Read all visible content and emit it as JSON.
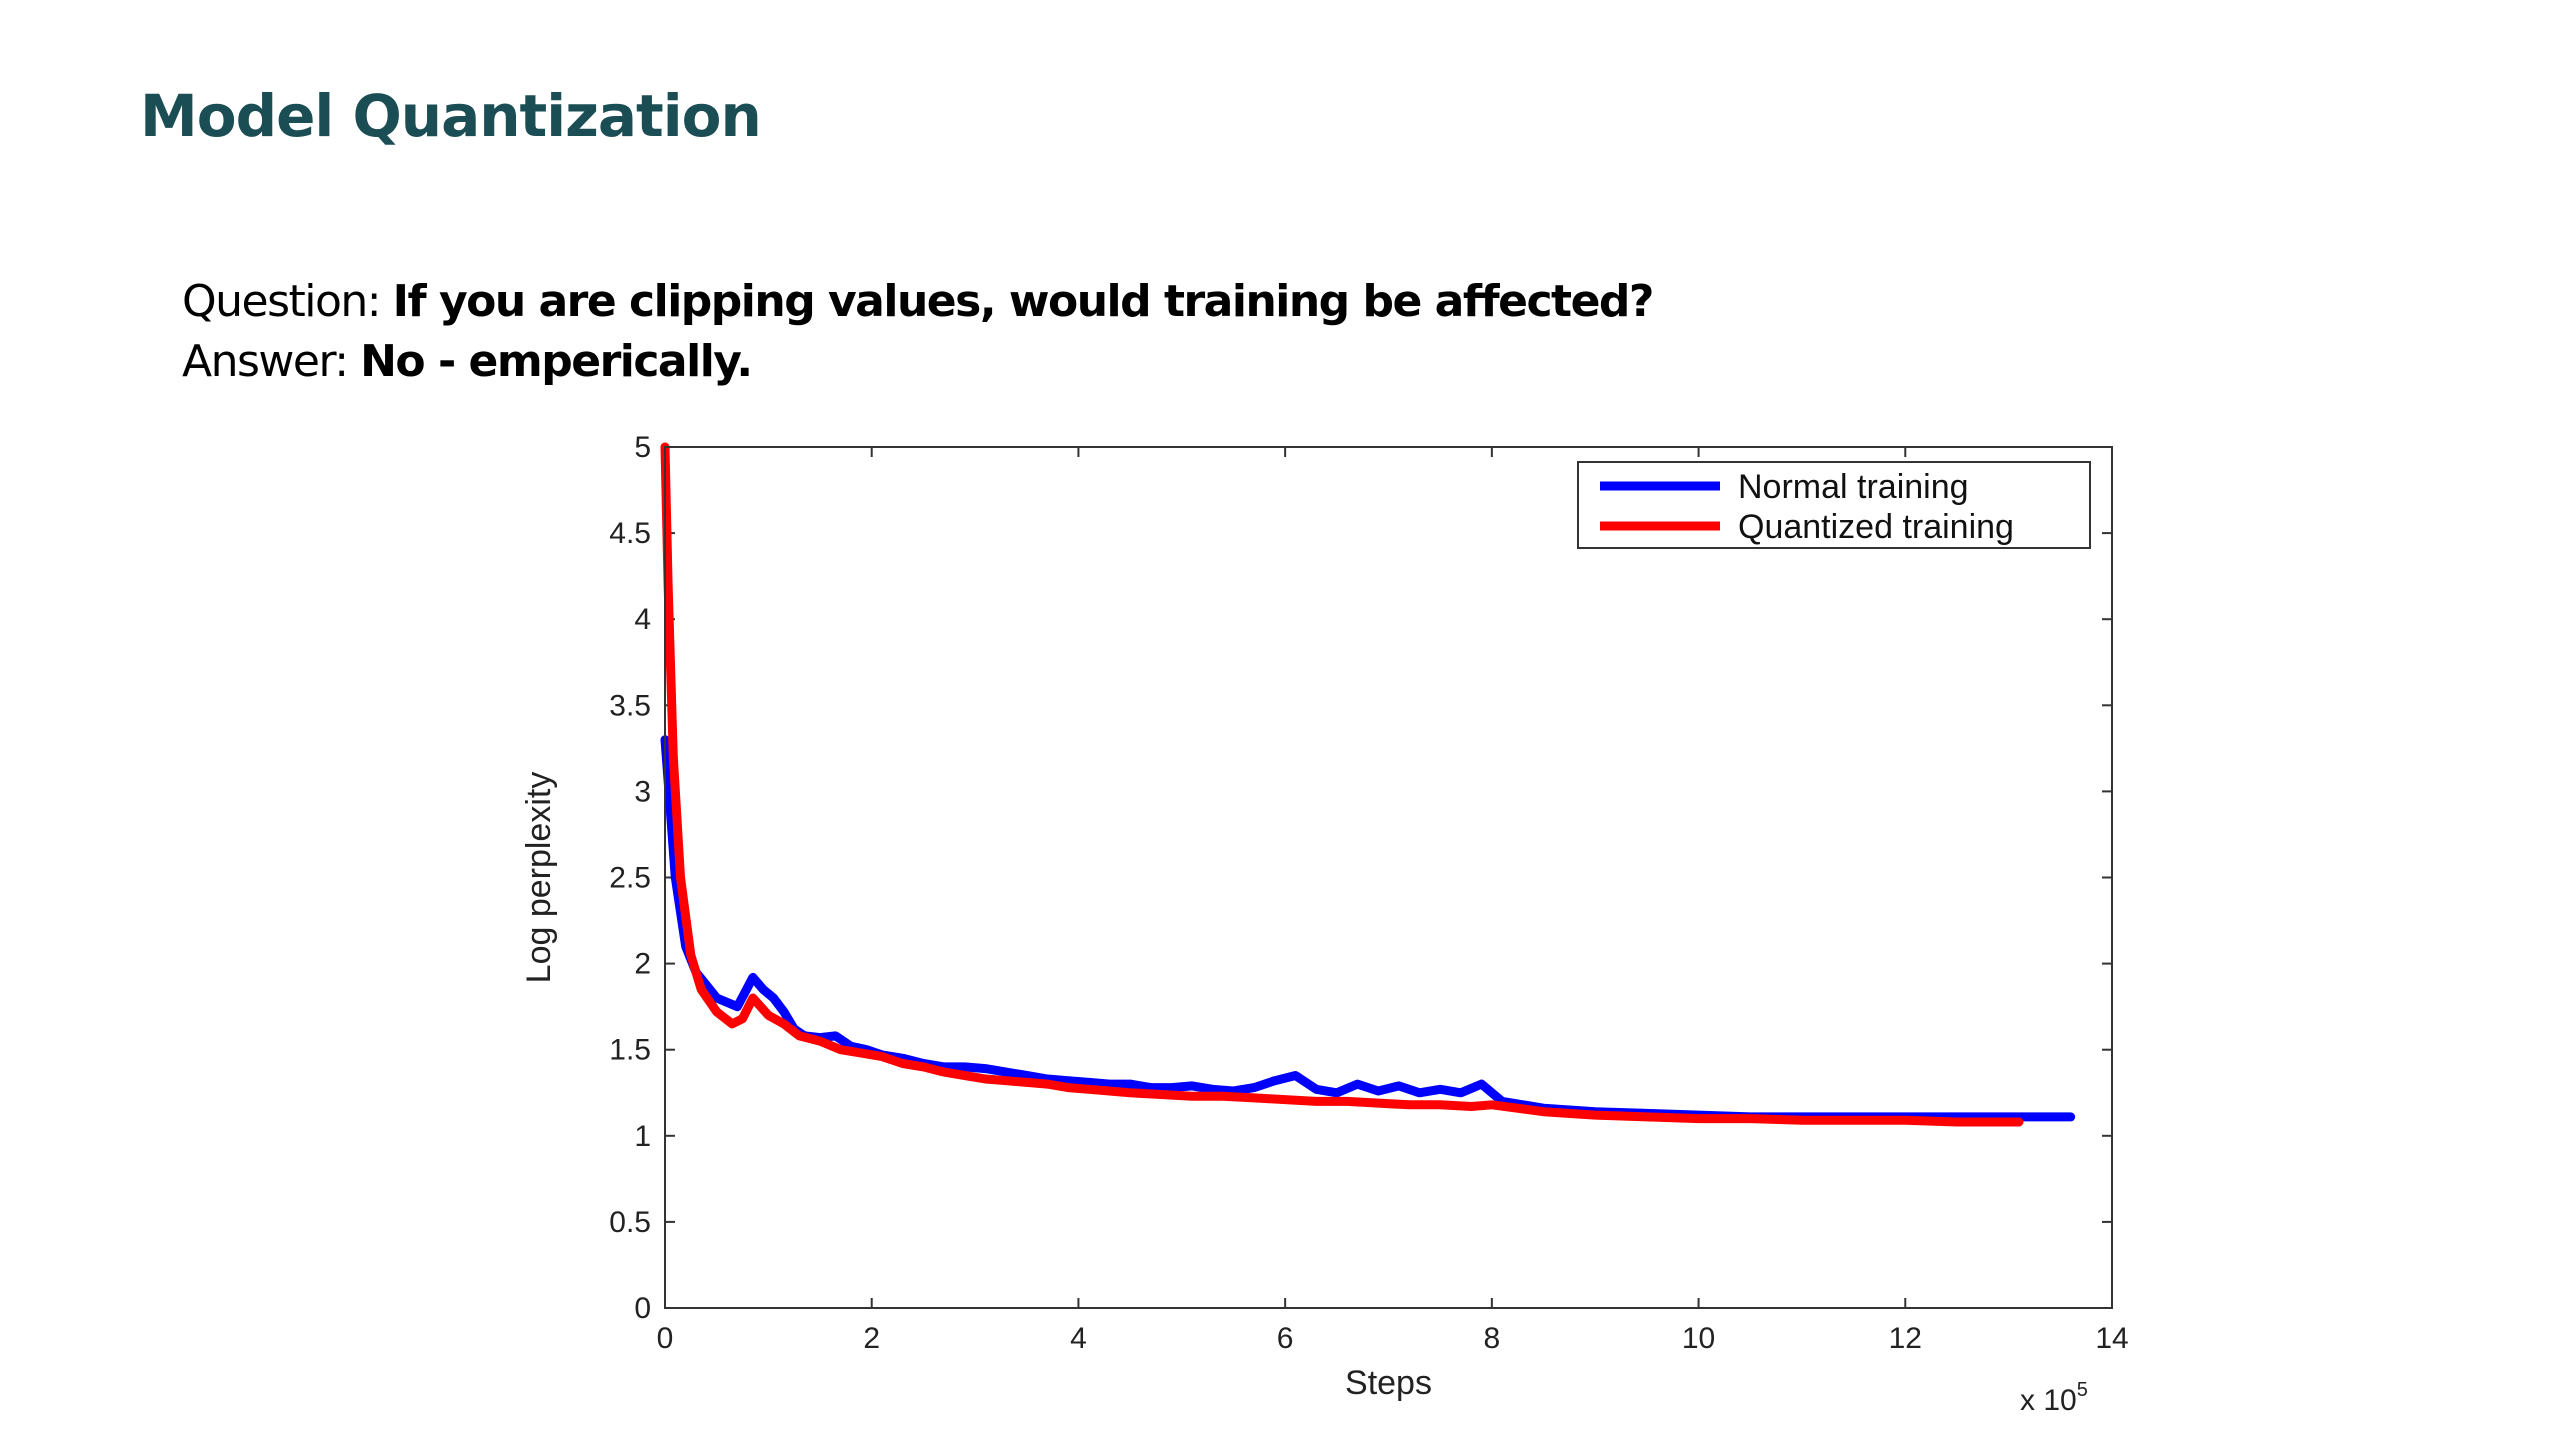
{
  "slide": {
    "title": "Model Quantization",
    "question_prefix": "Question: ",
    "question_text": "If you are clipping values, would training be affected?",
    "answer_prefix": "Answer: ",
    "answer_text": "No - emperically."
  },
  "chart_data": {
    "type": "line",
    "xlabel": "Steps",
    "ylabel": "Log perplexity",
    "x_multiplier_label": "x 10",
    "x_multiplier_exp": "5",
    "xlim": [
      0,
      14
    ],
    "ylim": [
      0,
      5
    ],
    "xticks": [
      "0",
      "2",
      "4",
      "6",
      "8",
      "10",
      "12",
      "14"
    ],
    "yticks": [
      "0",
      "0.5",
      "1",
      "1.5",
      "2",
      "2.5",
      "3",
      "3.5",
      "4",
      "4.5",
      "5"
    ],
    "grid": false,
    "legend_position": "top-right",
    "series": [
      {
        "name": "Normal training",
        "color": "#0000ff",
        "x": [
          0,
          0.05,
          0.1,
          0.2,
          0.3,
          0.5,
          0.7,
          0.85,
          0.95,
          1.05,
          1.15,
          1.25,
          1.35,
          1.5,
          1.65,
          1.8,
          1.95,
          2.1,
          2.3,
          2.5,
          2.7,
          2.9,
          3.1,
          3.3,
          3.5,
          3.7,
          3.9,
          4.1,
          4.3,
          4.5,
          4.7,
          4.9,
          5.1,
          5.3,
          5.5,
          5.7,
          5.9,
          6.1,
          6.3,
          6.5,
          6.7,
          6.9,
          7.1,
          7.3,
          7.5,
          7.7,
          7.9,
          8.1,
          8.5,
          9.0,
          9.5,
          10,
          10.5,
          11,
          11.5,
          12,
          12.5,
          13,
          13.6
        ],
        "y": [
          3.3,
          2.9,
          2.5,
          2.1,
          1.95,
          1.8,
          1.75,
          1.92,
          1.85,
          1.8,
          1.72,
          1.62,
          1.58,
          1.57,
          1.58,
          1.52,
          1.5,
          1.47,
          1.45,
          1.42,
          1.4,
          1.4,
          1.39,
          1.37,
          1.35,
          1.33,
          1.32,
          1.31,
          1.3,
          1.3,
          1.28,
          1.28,
          1.29,
          1.27,
          1.26,
          1.28,
          1.32,
          1.35,
          1.27,
          1.25,
          1.3,
          1.26,
          1.29,
          1.25,
          1.27,
          1.25,
          1.3,
          1.2,
          1.16,
          1.14,
          1.13,
          1.12,
          1.11,
          1.11,
          1.11,
          1.11,
          1.11,
          1.11,
          1.11
        ]
      },
      {
        "name": "Quantized training",
        "color": "#ff0000",
        "x": [
          0,
          0.03,
          0.08,
          0.15,
          0.25,
          0.35,
          0.5,
          0.65,
          0.75,
          0.85,
          1.0,
          1.15,
          1.3,
          1.5,
          1.7,
          1.9,
          2.1,
          2.3,
          2.5,
          2.7,
          2.9,
          3.1,
          3.3,
          3.5,
          3.7,
          3.9,
          4.1,
          4.3,
          4.5,
          4.8,
          5.1,
          5.4,
          5.7,
          6.0,
          6.3,
          6.6,
          6.9,
          7.2,
          7.5,
          7.8,
          8.0,
          8.5,
          9.0,
          9.5,
          10,
          10.5,
          11,
          11.5,
          12,
          12.5,
          13.1
        ],
        "y": [
          5.0,
          4.2,
          3.2,
          2.5,
          2.05,
          1.85,
          1.72,
          1.65,
          1.68,
          1.8,
          1.7,
          1.65,
          1.58,
          1.55,
          1.5,
          1.48,
          1.46,
          1.42,
          1.4,
          1.37,
          1.35,
          1.33,
          1.32,
          1.31,
          1.3,
          1.28,
          1.27,
          1.26,
          1.25,
          1.24,
          1.23,
          1.23,
          1.22,
          1.21,
          1.2,
          1.2,
          1.19,
          1.18,
          1.18,
          1.17,
          1.18,
          1.14,
          1.12,
          1.11,
          1.1,
          1.1,
          1.09,
          1.09,
          1.09,
          1.08,
          1.08
        ]
      }
    ]
  }
}
